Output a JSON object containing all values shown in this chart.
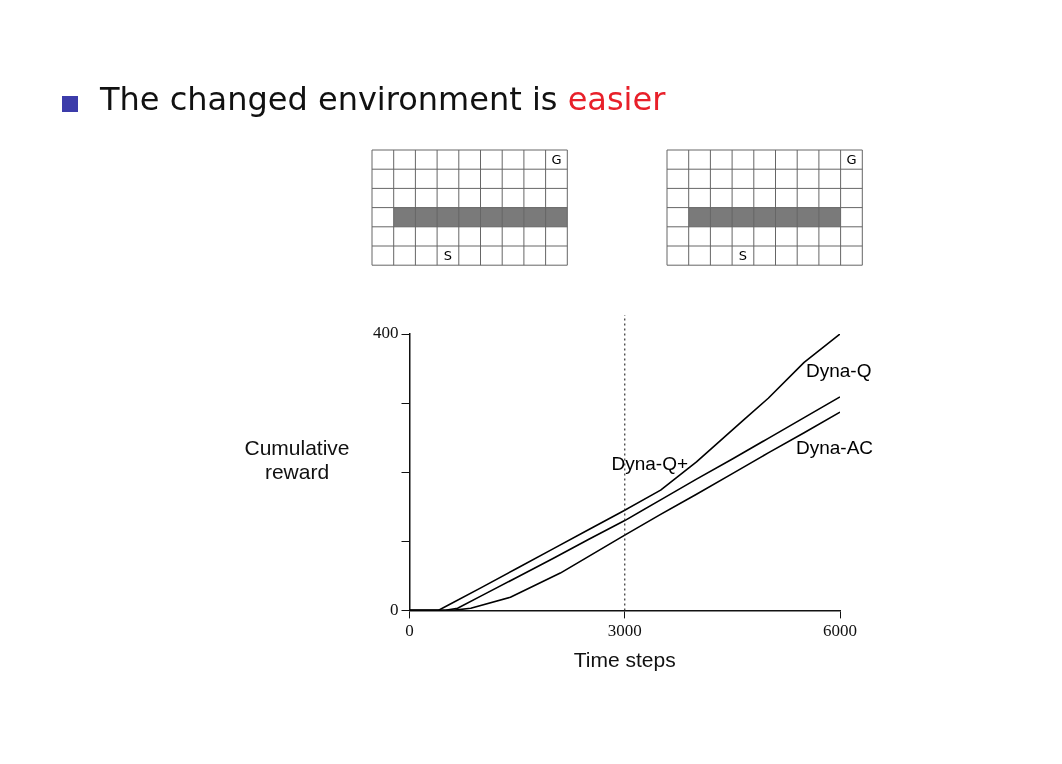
{
  "chart_data": {
    "type": "line",
    "title": "The changed environment is easier",
    "xlabel": "Time steps",
    "ylabel": "Cumulative reward",
    "xlim": [
      0,
      6000
    ],
    "xticks": [
      0,
      3000,
      6000
    ],
    "ylim": [
      0,
      400
    ],
    "yticks": [
      0,
      {
        "value": 100,
        "label": null
      },
      {
        "value": 200,
        "label": null
      },
      {
        "value": 300,
        "label": null
      },
      400
    ],
    "annotations": [
      "G",
      "S",
      "G",
      "S"
    ],
    "grid": false,
    "legend": false,
    "marker": "none",
    "line_style": "solid",
    "ref_lines": [
      {
        "axis": "x",
        "value": 3000,
        "line_style": "dotted",
        "color": "#333333"
      }
    ],
    "series": [
      {
        "name": "Dyna-Q+",
        "color": "#000000",
        "x": [
          0,
          400,
          530,
          1000,
          1500,
          2000,
          2500,
          3000,
          3500,
          4000,
          4650,
          5000,
          5500,
          6000
        ],
        "values": [
          0,
          0,
          7,
          33,
          61,
          89,
          117,
          145,
          174,
          215,
          275,
          307,
          359,
          400
        ]
      },
      {
        "name": "Dyna-Q",
        "color": "#000000",
        "x": [
          0,
          500,
          670,
          1000,
          1500,
          2000,
          2500,
          3000,
          3500,
          4000,
          4500,
          5000,
          5500,
          6000
        ],
        "values": [
          0,
          0,
          3,
          21,
          48,
          75,
          103,
          130,
          160,
          190,
          219,
          249,
          279,
          309
        ]
      },
      {
        "name": "Dyna-AC",
        "color": "#000000",
        "x": [
          0,
          600,
          854,
          1406,
          2102,
          3000,
          3500,
          4000,
          4500,
          5000,
          5500,
          6000
        ],
        "values": [
          0,
          0,
          3,
          19,
          54,
          109,
          139,
          168,
          198,
          228,
          257,
          287
        ]
      }
    ]
  }
}
